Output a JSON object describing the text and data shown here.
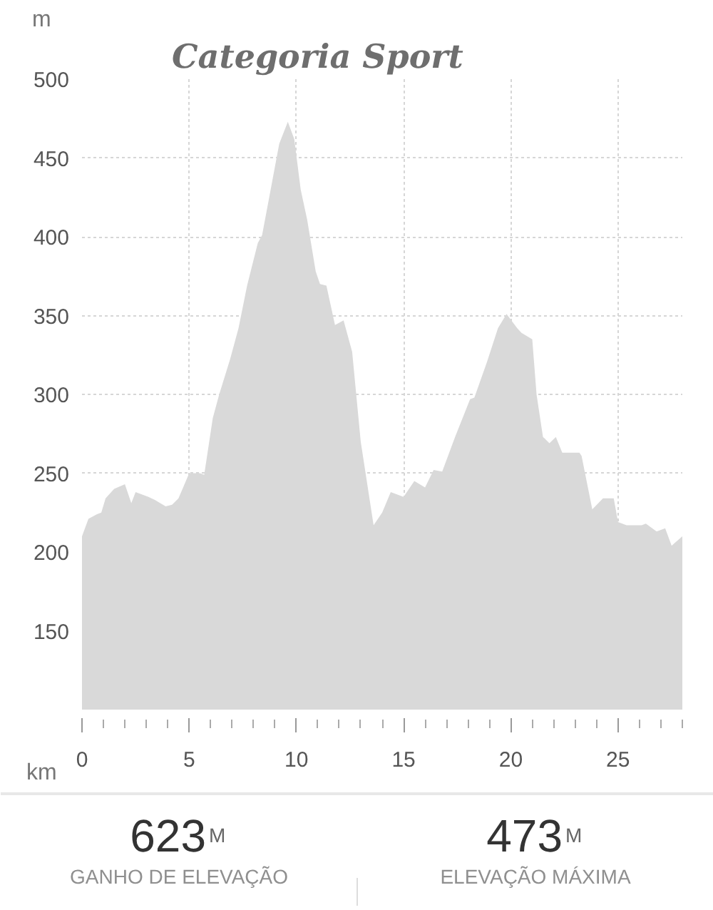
{
  "chart_data": {
    "type": "area",
    "title": "Categoria Sport",
    "xlabel": "km",
    "ylabel": "m",
    "color": "#d9d9d9",
    "grid": true,
    "x": [
      0,
      0.3,
      0.7,
      0.9,
      1.1,
      1.5,
      2.0,
      2.3,
      2.5,
      3.1,
      3.4,
      3.9,
      4.2,
      4.5,
      5.0,
      5.5,
      5.7,
      6.1,
      6.4,
      6.9,
      7.3,
      7.7,
      8.2,
      8.4,
      8.8,
      9.2,
      9.6,
      9.9,
      10.2,
      10.5,
      10.9,
      11.1,
      11.4,
      11.8,
      12.2,
      12.6,
      13.0,
      13.6,
      14.0,
      14.4,
      15.0,
      15.5,
      16.0,
      16.4,
      16.8,
      17.4,
      18.1,
      18.3,
      18.9,
      19.4,
      19.8,
      20.3,
      20.5,
      21.0,
      21.2,
      21.5,
      21.8,
      22.1,
      22.4,
      23.2,
      23.3,
      23.8,
      24.3,
      24.8,
      25.0,
      25.4,
      26.1,
      26.3,
      26.8,
      27.2,
      27.5,
      28.0
    ],
    "values": [
      210,
      221,
      224,
      225,
      234,
      240,
      243,
      231,
      238,
      235,
      233,
      229,
      230,
      234,
      250,
      250,
      249,
      285,
      300,
      322,
      342,
      369,
      396,
      401,
      430,
      459,
      473,
      462,
      430,
      411,
      378,
      370,
      369,
      344,
      347,
      327,
      270,
      217,
      225,
      238,
      235,
      245,
      241,
      252,
      251,
      273,
      297,
      298,
      321,
      342,
      351,
      342,
      339,
      335,
      300,
      273,
      269,
      273,
      263,
      263,
      261,
      227,
      234,
      234,
      219,
      217,
      217,
      218,
      213,
      215,
      204,
      210
    ],
    "xlim": [
      0,
      28
    ],
    "ylim": [
      100,
      500
    ],
    "xticks": [
      0,
      {
        "value": 1,
        "label": null
      },
      {
        "value": 2,
        "label": null
      },
      {
        "value": 3,
        "label": null
      },
      {
        "value": 4,
        "label": null
      },
      5,
      {
        "value": 6,
        "label": null
      },
      {
        "value": 7,
        "label": null
      },
      {
        "value": 8,
        "label": null
      },
      {
        "value": 9,
        "label": null
      },
      10,
      {
        "value": 11,
        "label": null
      },
      {
        "value": 12,
        "label": null
      },
      {
        "value": 13,
        "label": null
      },
      {
        "value": 14,
        "label": null
      },
      15,
      {
        "value": 16,
        "label": null
      },
      {
        "value": 17,
        "label": null
      },
      {
        "value": 18,
        "label": null
      },
      {
        "value": 19,
        "label": null
      },
      20,
      {
        "value": 21,
        "label": null
      },
      {
        "value": 22,
        "label": null
      },
      {
        "value": 23,
        "label": null
      },
      {
        "value": 24,
        "label": null
      },
      25,
      {
        "value": 26,
        "label": null
      },
      {
        "value": 27,
        "label": null
      },
      {
        "value": 28,
        "label": null
      }
    ],
    "yticks": [
      150,
      200,
      250,
      300,
      350,
      400,
      450,
      500
    ],
    "annotations": [
      "623",
      "M",
      "GANHO DE ELEVAÇÃO",
      "473",
      "M",
      "ELEVAÇÃO MÁXIMA"
    ]
  }
}
